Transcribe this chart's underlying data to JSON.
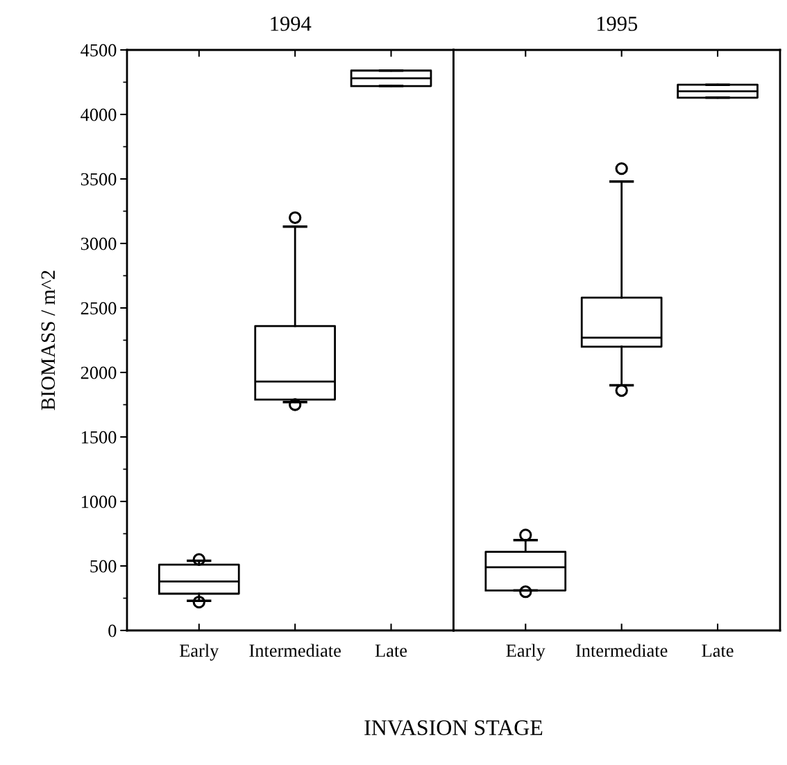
{
  "chart_data": [
    {
      "type": "box",
      "title": "1994",
      "ylabel": "BIOMASS / m^2",
      "xlabel": "INVASION STAGE",
      "categories": [
        "Early",
        "Intermediate",
        "Late"
      ],
      "ylim": [
        0,
        4500
      ],
      "yticks": [
        0,
        500,
        1000,
        1500,
        2000,
        2500,
        3000,
        3500,
        4000,
        4500
      ],
      "grid": false,
      "color": "#000000",
      "boxes": [
        {
          "low": 230,
          "q1": 285,
          "median": 380,
          "q3": 510,
          "high": 540,
          "outliers": [
            550,
            220
          ]
        },
        {
          "low": 1770,
          "q1": 1790,
          "median": 1930,
          "q3": 2360,
          "high": 3130,
          "outliers": [
            3200,
            1750
          ]
        },
        {
          "low": 4220,
          "q1": 4220,
          "median": 4280,
          "q3": 4340,
          "high": 4340
        }
      ]
    },
    {
      "type": "box",
      "title": "1995",
      "categories": [
        "Early",
        "Intermediate",
        "Late"
      ],
      "ylim": [
        0,
        4500
      ],
      "yticks": [
        0,
        500,
        1000,
        1500,
        2000,
        2500,
        3000,
        3500,
        4000,
        4500
      ],
      "tick_labels": "x",
      "grid": false,
      "color": "#000000",
      "boxes": [
        {
          "low": 310,
          "q1": 310,
          "median": 490,
          "q3": 610,
          "high": 700,
          "outliers": [
            740,
            300
          ]
        },
        {
          "low": 1900,
          "q1": 2200,
          "median": 2270,
          "q3": 2580,
          "high": 3480,
          "outliers": [
            3580,
            1860
          ]
        },
        {
          "low": 4130,
          "q1": 4130,
          "median": 4180,
          "q3": 4230,
          "high": 4230
        }
      ]
    }
  ]
}
